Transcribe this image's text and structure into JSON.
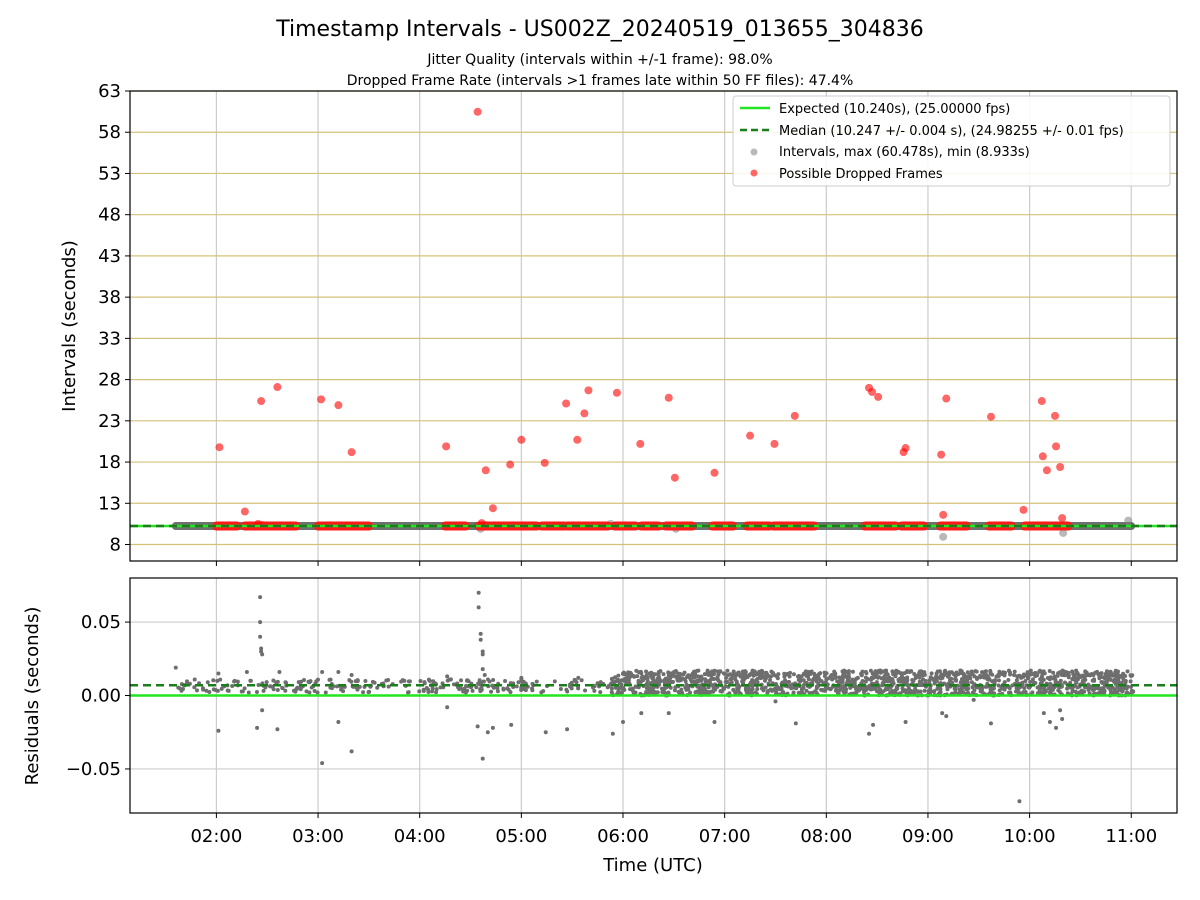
{
  "chart_data": [
    {
      "type": "scatter",
      "title": "Timestamp Intervals - US002Z_20240519_013655_304836",
      "subtitle_lines": [
        "Jitter Quality (intervals within +/-1 frame): 98.0%",
        "Dropped Frame Rate (intervals >1 frames late within 50 FF files): 47.4%"
      ],
      "xlabel": "",
      "ylabel": "Intervals (seconds)",
      "x_unit": "hours UTC",
      "xlim": [
        1.15,
        11.45
      ],
      "ylim": [
        6,
        63
      ],
      "yticks": [
        8,
        13,
        18,
        23,
        28,
        33,
        38,
        43,
        48,
        53,
        58,
        63
      ],
      "xticks": [
        2,
        3,
        4,
        5,
        6,
        7,
        8,
        9,
        10,
        11
      ],
      "xtick_labels": [
        "02:00",
        "03:00",
        "04:00",
        "05:00",
        "06:00",
        "07:00",
        "08:00",
        "09:00",
        "10:00",
        "11:00"
      ],
      "grid": true,
      "legend_position": "top-right",
      "expected_value": 10.24,
      "median_value": 10.247,
      "normal_band": {
        "x_start": 1.6,
        "x_end": 11.0,
        "y": 10.24
      },
      "dense_dropped_segments": [
        [
          2.0,
          2.2
        ],
        [
          2.28,
          2.78
        ],
        [
          3.0,
          3.5
        ],
        [
          4.25,
          4.45
        ],
        [
          4.58,
          5.15
        ],
        [
          5.2,
          5.42
        ],
        [
          5.45,
          5.85
        ],
        [
          5.92,
          6.12
        ],
        [
          6.18,
          6.35
        ],
        [
          6.42,
          6.68
        ],
        [
          6.88,
          7.08
        ],
        [
          7.22,
          7.44
        ],
        [
          7.48,
          7.66
        ],
        [
          7.68,
          7.88
        ],
        [
          8.38,
          8.68
        ],
        [
          8.74,
          8.96
        ],
        [
          9.12,
          9.38
        ],
        [
          9.6,
          9.82
        ],
        [
          9.95,
          10.38
        ]
      ],
      "series": [
        {
          "name": "Expected (10.240s), (25.00000 fps)",
          "style": "solid-line",
          "color": "#22e622"
        },
        {
          "name": "Median (10.247 +/- 0.004 s), (24.98255 +/- 0.01 fps)",
          "style": "dashed-line",
          "color": "#1a7f1a"
        },
        {
          "name": "Intervals, max (60.478s), min (8.933s)",
          "style": "gray-points",
          "color": "#808080",
          "points": [
            [
              6.52,
              9.9
            ],
            [
              9.15,
              8.93
            ],
            [
              10.33,
              9.4
            ],
            [
              10.97,
              10.9
            ],
            [
              4.6,
              9.9
            ],
            [
              5.88,
              10.5
            ],
            [
              8.45,
              10.3
            ],
            [
              2.45,
              10.4
            ]
          ]
        },
        {
          "name": "Possible Dropped Frames",
          "style": "red-points",
          "color": "#ff0000",
          "points": [
            [
              2.03,
              19.8
            ],
            [
              2.28,
              12.0
            ],
            [
              2.44,
              25.4
            ],
            [
              2.6,
              27.1
            ],
            [
              2.41,
              10.5
            ],
            [
              3.03,
              25.6
            ],
            [
              3.2,
              24.9
            ],
            [
              3.33,
              19.2
            ],
            [
              4.26,
              19.9
            ],
            [
              4.57,
              60.48
            ],
            [
              4.61,
              10.6
            ],
            [
              4.65,
              17.0
            ],
            [
              4.72,
              12.4
            ],
            [
              4.89,
              17.7
            ],
            [
              5.0,
              20.7
            ],
            [
              5.23,
              17.9
            ],
            [
              5.44,
              25.1
            ],
            [
              5.55,
              20.7
            ],
            [
              5.62,
              23.9
            ],
            [
              5.66,
              26.7
            ],
            [
              5.94,
              26.4
            ],
            [
              6.17,
              20.2
            ],
            [
              6.45,
              25.8
            ],
            [
              6.51,
              16.1
            ],
            [
              6.9,
              16.7
            ],
            [
              7.25,
              21.2
            ],
            [
              7.49,
              20.2
            ],
            [
              7.69,
              23.6
            ],
            [
              8.42,
              27.0
            ],
            [
              8.45,
              26.5
            ],
            [
              8.51,
              25.9
            ],
            [
              8.76,
              19.2
            ],
            [
              8.78,
              19.7
            ],
            [
              9.13,
              18.9
            ],
            [
              9.15,
              11.6
            ],
            [
              9.18,
              25.7
            ],
            [
              9.62,
              23.5
            ],
            [
              9.94,
              12.2
            ],
            [
              10.12,
              25.4
            ],
            [
              10.13,
              18.7
            ],
            [
              10.17,
              17.0
            ],
            [
              10.25,
              23.6
            ],
            [
              10.26,
              19.9
            ],
            [
              10.3,
              17.4
            ],
            [
              10.32,
              11.2
            ]
          ]
        }
      ]
    },
    {
      "type": "scatter",
      "title": "",
      "xlabel": "Time (UTC)",
      "ylabel": "Residuals (seconds)",
      "x_unit": "hours UTC",
      "xlim": [
        1.15,
        11.45
      ],
      "ylim": [
        -0.08,
        0.08
      ],
      "yticks": [
        -0.05,
        0.0,
        0.05
      ],
      "ytick_labels": [
        "−0.05",
        "0.00",
        "0.05"
      ],
      "xticks": [
        2,
        3,
        4,
        5,
        6,
        7,
        8,
        9,
        10,
        11
      ],
      "xtick_labels": [
        "02:00",
        "03:00",
        "04:00",
        "05:00",
        "06:00",
        "07:00",
        "08:00",
        "09:00",
        "10:00",
        "11:00"
      ],
      "grid": true,
      "zero_line": 0.0,
      "median_line": 0.007,
      "cloud_regions": [
        {
          "x_start": 1.6,
          "x_end": 5.88,
          "y_min": 0.002,
          "y_max": 0.011,
          "count": 260
        },
        {
          "x_start": 5.88,
          "x_end": 11.02,
          "y_min": 0.0,
          "y_max": 0.017,
          "count": 1500
        }
      ],
      "outliers": [
        [
          1.6,
          0.019
        ],
        [
          2.02,
          -0.024
        ],
        [
          2.02,
          0.015
        ],
        [
          2.3,
          0.016
        ],
        [
          2.4,
          -0.022
        ],
        [
          2.43,
          0.067
        ],
        [
          2.43,
          0.05
        ],
        [
          2.43,
          0.04
        ],
        [
          2.44,
          0.032
        ],
        [
          2.44,
          0.03
        ],
        [
          2.45,
          -0.01
        ],
        [
          2.45,
          0.028
        ],
        [
          2.6,
          -0.023
        ],
        [
          2.62,
          0.016
        ],
        [
          3.04,
          -0.046
        ],
        [
          3.04,
          0.016
        ],
        [
          3.2,
          -0.018
        ],
        [
          3.2,
          0.016
        ],
        [
          3.33,
          -0.038
        ],
        [
          3.33,
          0.014
        ],
        [
          4.27,
          -0.008
        ],
        [
          4.27,
          0.013
        ],
        [
          4.58,
          0.07
        ],
        [
          4.58,
          0.06
        ],
        [
          4.6,
          0.042
        ],
        [
          4.6,
          0.038
        ],
        [
          4.62,
          0.03
        ],
        [
          4.62,
          0.028
        ],
        [
          4.62,
          0.018
        ],
        [
          4.64,
          0.014
        ],
        [
          4.57,
          -0.021
        ],
        [
          4.62,
          -0.043
        ],
        [
          4.67,
          -0.025
        ],
        [
          4.72,
          -0.022
        ],
        [
          4.9,
          -0.02
        ],
        [
          5.0,
          0.012
        ],
        [
          5.24,
          -0.025
        ],
        [
          5.45,
          -0.023
        ],
        [
          5.56,
          0.012
        ],
        [
          5.9,
          -0.026
        ],
        [
          6.0,
          -0.018
        ],
        [
          6.18,
          -0.012
        ],
        [
          6.45,
          -0.012
        ],
        [
          6.9,
          -0.018
        ],
        [
          7.5,
          -0.004
        ],
        [
          7.7,
          -0.019
        ],
        [
          8.42,
          -0.026
        ],
        [
          8.46,
          -0.02
        ],
        [
          8.78,
          -0.018
        ],
        [
          9.14,
          -0.012
        ],
        [
          9.18,
          -0.014
        ],
        [
          9.62,
          -0.019
        ],
        [
          9.9,
          -0.072
        ],
        [
          10.14,
          -0.012
        ],
        [
          10.2,
          -0.018
        ],
        [
          10.26,
          -0.022
        ],
        [
          10.3,
          -0.01
        ],
        [
          9.45,
          -0.003
        ],
        [
          10.32,
          -0.016
        ]
      ]
    }
  ]
}
